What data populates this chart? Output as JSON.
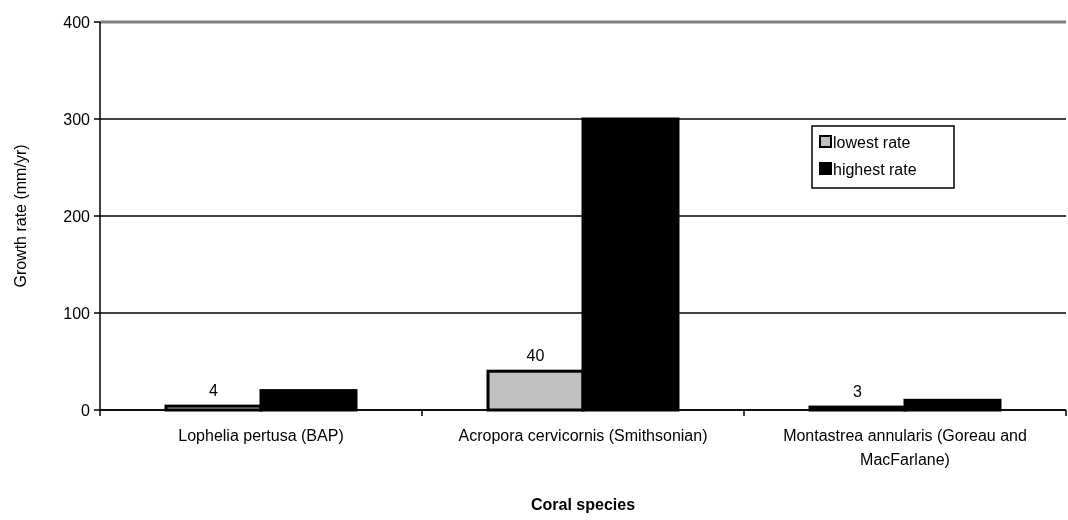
{
  "chart_data": {
    "type": "bar",
    "xlabel": "Coral species",
    "ylabel": "Growth rate  (mm/yr)",
    "categories": [
      "Lophelia pertusa (BAP)",
      "Acropora cervicornis (Smithsonian)",
      "Montastrea annularis (Goreau and MacFarlane)"
    ],
    "series": [
      {
        "name": "lowest rate",
        "color": "#c0c0c0",
        "values": [
          4,
          40,
          3
        ],
        "value_labels": [
          "4",
          "40",
          "3"
        ]
      },
      {
        "name": "highest rate",
        "color": "#000000",
        "values": [
          20,
          300,
          10
        ]
      }
    ],
    "ylim": [
      0,
      400
    ],
    "yticks": [
      0,
      100,
      200,
      300,
      400
    ],
    "grid": "y",
    "legend": "top right"
  }
}
